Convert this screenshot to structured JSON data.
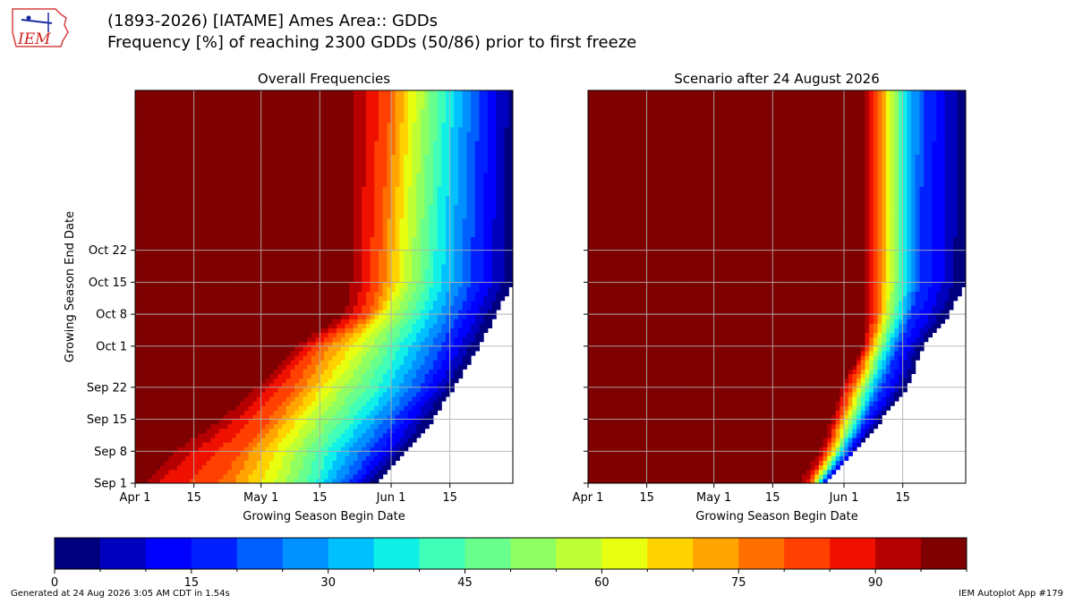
{
  "header": {
    "title_line1": "(1893-2026) [IATAME] Ames Area:: GDDs",
    "title_line2": "Frequency [%] of reaching 2300 GDDs (50/86) prior to first freeze",
    "logo_text": "IEM"
  },
  "footer": {
    "generated": "Generated at 24 Aug 2026 3:05 AM CDT in 1.54s",
    "app": "IEM Autoplot App #179"
  },
  "chart_data": [
    {
      "type": "heatmap",
      "title": "Overall Frequencies",
      "xlabel": "Growing Season Begin Date",
      "ylabel": "Growing Season End Date",
      "x_range_days_after_apr1": [
        0,
        90
      ],
      "y_range_days_after_sep1": [
        0,
        86
      ],
      "x_ticks": [
        {
          "label": "Apr 1",
          "day": 0
        },
        {
          "label": "15",
          "day": 14
        },
        {
          "label": "May 1",
          "day": 30
        },
        {
          "label": "15",
          "day": 44
        },
        {
          "label": "Jun 1",
          "day": 61
        },
        {
          "label": "15",
          "day": 75
        }
      ],
      "y_ticks": [
        {
          "label": "Sep 1",
          "day": 0
        },
        {
          "label": "Sep 8",
          "day": 7
        },
        {
          "label": "Sep 15",
          "day": 14
        },
        {
          "label": "Sep 22",
          "day": 21
        },
        {
          "label": "Oct 1",
          "day": 30
        },
        {
          "label": "Oct 8",
          "day": 37
        },
        {
          "label": "Oct 15",
          "day": 44
        },
        {
          "label": "Oct 22",
          "day": 51
        }
      ],
      "grid": true,
      "boundary_points": [
        {
          "end_day": 0,
          "d100": 0,
          "d90": 5,
          "d80": 20,
          "d60": 33,
          "d40": 43,
          "d20": 51,
          "d0": 57
        },
        {
          "end_day": 7,
          "d100": 5,
          "d90": 14,
          "d80": 25,
          "d60": 36,
          "d40": 46,
          "d20": 56,
          "d0": 65
        },
        {
          "end_day": 14,
          "d100": 17,
          "d90": 24,
          "d80": 32,
          "d60": 41,
          "d40": 52,
          "d20": 62,
          "d0": 71
        },
        {
          "end_day": 21,
          "d100": 27,
          "d90": 31,
          "d80": 38,
          "d60": 47,
          "d40": 58,
          "d20": 68,
          "d0": 76
        },
        {
          "end_day": 30,
          "d100": 36,
          "d90": 40,
          "d80": 44,
          "d60": 54,
          "d40": 63,
          "d20": 73,
          "d0": 82
        },
        {
          "end_day": 37,
          "d100": 48,
          "d90": 52,
          "d80": 56,
          "d60": 60,
          "d40": 68,
          "d20": 77,
          "d0": 86
        },
        {
          "end_day": 44,
          "d100": 49,
          "d90": 54,
          "d80": 58,
          "d60": 64,
          "d40": 71,
          "d20": 80,
          "d0": 90
        },
        {
          "end_day": 86,
          "d100": 49,
          "d90": 55,
          "d80": 61,
          "d60": 67,
          "d40": 74,
          "d20": 82,
          "d0": 91
        }
      ]
    },
    {
      "type": "heatmap",
      "title": "Scenario after 24 August 2026",
      "xlabel": "Growing Season Begin Date",
      "ylabel": "",
      "x_range_days_after_apr1": [
        0,
        90
      ],
      "y_range_days_after_sep1": [
        0,
        86
      ],
      "x_ticks": [
        {
          "label": "Apr 1",
          "day": 0
        },
        {
          "label": "15",
          "day": 14
        },
        {
          "label": "May 1",
          "day": 30
        },
        {
          "label": "15",
          "day": 44
        },
        {
          "label": "Jun 1",
          "day": 61
        },
        {
          "label": "15",
          "day": 75
        }
      ],
      "y_ticks": [
        {
          "label": "",
          "day": 0
        },
        {
          "label": "",
          "day": 7
        },
        {
          "label": "",
          "day": 14
        },
        {
          "label": "",
          "day": 21
        },
        {
          "label": "",
          "day": 30
        },
        {
          "label": "",
          "day": 37
        },
        {
          "label": "",
          "day": 44
        },
        {
          "label": "",
          "day": 51
        }
      ],
      "grid": true,
      "boundary_points": [
        {
          "end_day": 0,
          "d100": 49,
          "d90": 52,
          "d80": 53,
          "d60": 54,
          "d40": 55,
          "d20": 56,
          "d0": 57
        },
        {
          "end_day": 7,
          "d100": 54,
          "d90": 56,
          "d80": 57,
          "d60": 59,
          "d40": 60,
          "d20": 62,
          "d0": 64
        },
        {
          "end_day": 14,
          "d100": 57,
          "d90": 59,
          "d80": 60,
          "d60": 62,
          "d40": 64,
          "d20": 66,
          "d0": 70
        },
        {
          "end_day": 21,
          "d100": 60,
          "d90": 61,
          "d80": 63,
          "d60": 65,
          "d40": 67,
          "d20": 70,
          "d0": 76
        },
        {
          "end_day": 30,
          "d100": 65,
          "d90": 66,
          "d80": 67,
          "d60": 69,
          "d40": 71,
          "d20": 74,
          "d0": 80
        },
        {
          "end_day": 37,
          "d100": 65,
          "d90": 67,
          "d80": 69,
          "d60": 71,
          "d40": 74,
          "d20": 77,
          "d0": 86
        },
        {
          "end_day": 44,
          "d100": 65,
          "d90": 67,
          "d80": 69,
          "d60": 72,
          "d40": 75,
          "d20": 79,
          "d0": 90
        },
        {
          "end_day": 86,
          "d100": 65,
          "d90": 67,
          "d80": 69,
          "d60": 72,
          "d40": 75,
          "d20": 80,
          "d0": 91
        }
      ]
    }
  ],
  "colorbar": {
    "min": 0,
    "max": 100,
    "step": 5,
    "tick_labels": [
      {
        "label": "0",
        "value": 0
      },
      {
        "label": "15",
        "value": 15
      },
      {
        "label": "30",
        "value": 30
      },
      {
        "label": "45",
        "value": 45
      },
      {
        "label": "60",
        "value": 60
      },
      {
        "label": "75",
        "value": 75
      },
      {
        "label": "90",
        "value": 90
      }
    ],
    "colors": [
      "#00007f",
      "#0000bf",
      "#0000ff",
      "#0020ff",
      "#0060ff",
      "#0090ff",
      "#00c0ff",
      "#10f0e8",
      "#40ffb8",
      "#68ff8c",
      "#90ff62",
      "#bfff36",
      "#e8ff10",
      "#ffd200",
      "#ffa400",
      "#ff7000",
      "#ff4000",
      "#f01000",
      "#b40000",
      "#7f0000"
    ]
  }
}
